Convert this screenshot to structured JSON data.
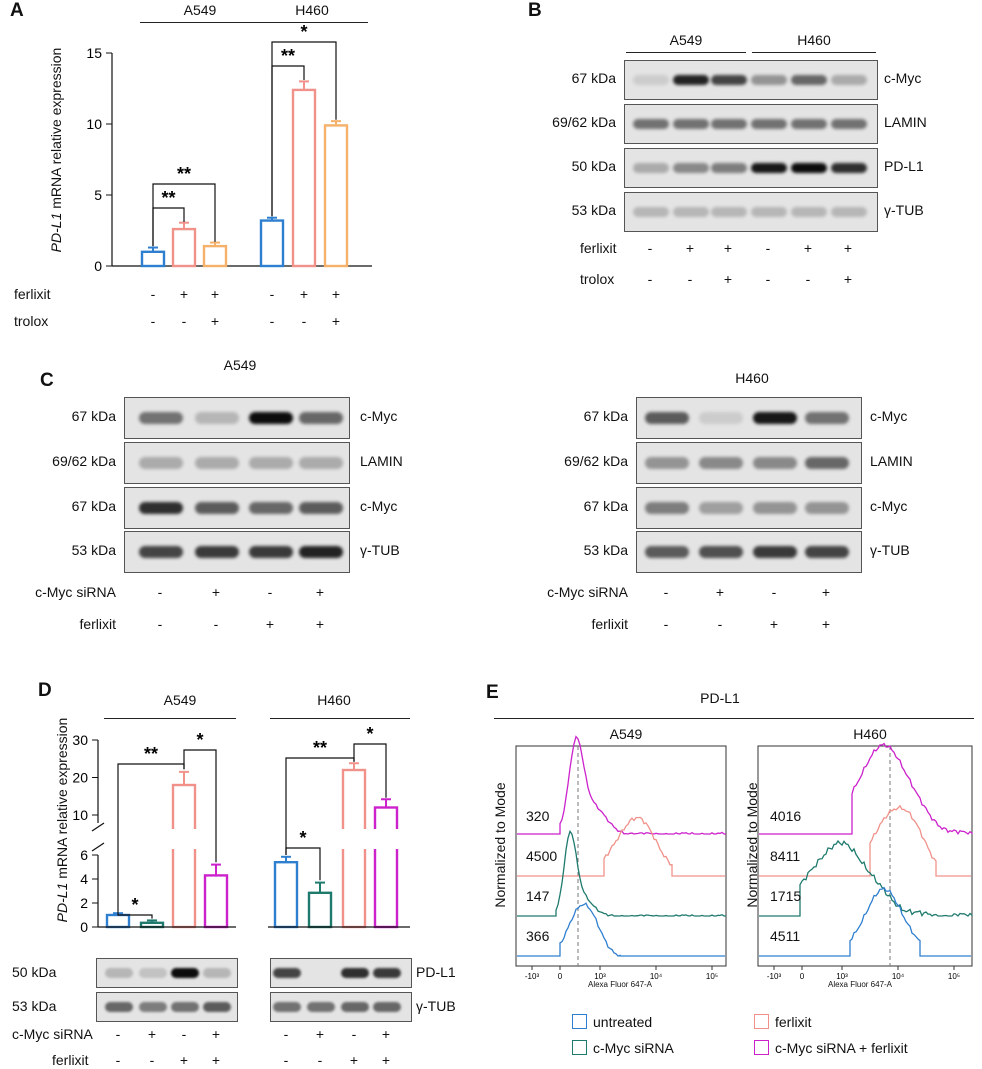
{
  "panels": {
    "A": "A",
    "B": "B",
    "C": "C",
    "D": "D",
    "E": "E"
  },
  "panel_a": {
    "cells": [
      "A549",
      "H460"
    ],
    "ylabel_gene": "PD-L1",
    "ylabel_rest": " mRNA relative expression",
    "treat": {
      "ferlixit": "ferlixit",
      "trolox": "trolox",
      "ferlixit_signs": [
        "-",
        "+",
        "+",
        "-",
        "+",
        "+"
      ],
      "trolox_signs": [
        "-",
        "-",
        "+",
        "-",
        "-",
        "+"
      ]
    },
    "sig": [
      "**",
      "**",
      "**",
      "*"
    ]
  },
  "panel_b": {
    "cells": [
      "A549",
      "H460"
    ],
    "rows": [
      {
        "kda": "67 kDa",
        "protein": "c-Myc"
      },
      {
        "kda": "69/62 kDa",
        "protein": "LAMIN"
      },
      {
        "kda": "50 kDa",
        "protein": "PD-L1"
      },
      {
        "kda": "53 kDa",
        "protein": "γ-TUB"
      }
    ],
    "ferlixit": "ferlixit",
    "trolox": "trolox",
    "ferlixit_signs": [
      "-",
      "+",
      "+",
      "-",
      "+",
      "+"
    ],
    "trolox_signs": [
      "-",
      "-",
      "+",
      "-",
      "-",
      "+"
    ]
  },
  "panel_c": {
    "left": {
      "cell": "A549",
      "rows": [
        {
          "kda": "67 kDa",
          "protein": "c-Myc"
        },
        {
          "kda": "69/62 kDa",
          "protein": "LAMIN"
        },
        {
          "kda": "67 kDa",
          "protein": "c-Myc"
        },
        {
          "kda": "53 kDa",
          "protein": "γ-TUB"
        }
      ],
      "sirna_label": "c-Myc siRNA",
      "ferlixit_label": "ferlixit",
      "sirna_signs": [
        "-",
        "+",
        "-",
        "+"
      ],
      "ferlixit_signs": [
        "-",
        "-",
        "+",
        "+"
      ]
    },
    "right": {
      "cell": "H460",
      "rows": [
        {
          "kda": "67 kDa",
          "protein": "c-Myc"
        },
        {
          "kda": "69/62 kDa",
          "protein": "LAMIN"
        },
        {
          "kda": "67 kDa",
          "protein": "c-Myc"
        },
        {
          "kda": "53 kDa",
          "protein": "γ-TUB"
        }
      ],
      "sirna_label": "c-Myc siRNA",
      "ferlixit_label": "ferlixit",
      "sirna_signs": [
        "-",
        "+",
        "-",
        "+"
      ],
      "ferlixit_signs": [
        "-",
        "-",
        "+",
        "+"
      ]
    }
  },
  "panel_d": {
    "cells": [
      "A549",
      "H460"
    ],
    "ylabel_gene": "PD-L1",
    "ylabel_rest": " mRNA relative expression",
    "blot_rows": [
      {
        "kda": "50 kDa",
        "protein": "PD-L1"
      },
      {
        "kda": "53 kDa",
        "protein": "γ-TUB"
      }
    ],
    "sirna_label": "c-Myc siRNA",
    "ferlixit_label": "ferlixit",
    "sirna_signs": [
      "-",
      "+",
      "-",
      "+",
      "-",
      "+",
      "-",
      "+"
    ],
    "ferlixit_signs": [
      "-",
      "-",
      "+",
      "+",
      "-",
      "-",
      "+",
      "+"
    ],
    "sig": [
      "*",
      "**",
      "*",
      "*",
      "**",
      "*"
    ]
  },
  "panel_e": {
    "title": "PD-L1",
    "cells": [
      "A549",
      "H460"
    ],
    "ylabel": "Normalized to Mode",
    "xlabel": "Alexa Fluor 647-A",
    "mfi_left": [
      "320",
      "4500",
      "147",
      "366"
    ],
    "mfi_right": [
      "4016",
      "8411",
      "1715",
      "4511"
    ],
    "legend": [
      {
        "label": "untreated",
        "color": "#2f7fd0"
      },
      {
        "label": "ferlixit",
        "color": "#f0928a"
      },
      {
        "label": "c-Myc siRNA",
        "color": "#1f7a6e"
      },
      {
        "label": "c-Myc siRNA + ferlixit",
        "color": "#cc22cc"
      }
    ]
  },
  "chart_data": [
    {
      "type": "bar",
      "id": "A",
      "title": "",
      "ylabel": "PD-L1 mRNA relative expression",
      "ylim": [
        0,
        15
      ],
      "yticks": [
        "0",
        "5",
        "10",
        "15"
      ],
      "categories": [
        "A549 ctrl",
        "A549 ferlixit",
        "A549 ferlixit+trolox",
        "H460 ctrl",
        "H460 ferlixit",
        "H460 ferlixit+trolox"
      ],
      "values": [
        1.0,
        2.6,
        1.4,
        3.2,
        12.4,
        9.9
      ],
      "errors": [
        0.3,
        0.45,
        0.25,
        0.2,
        0.6,
        0.3
      ],
      "colors": [
        "#2f7fd0",
        "#f0928a",
        "#f5b06a",
        "#2f7fd0",
        "#f0928a",
        "#f5b06a"
      ]
    },
    {
      "type": "bar",
      "id": "D",
      "title": "",
      "ylabel": "PD-L1 mRNA relative expression",
      "ylim": [
        0,
        30
      ],
      "axis_break": [
        6,
        10
      ],
      "yticks": [
        "0",
        "2",
        "4",
        "6",
        "10",
        "20",
        "30"
      ],
      "categories": [
        "A549 ctrl",
        "A549 siRNA",
        "A549 ferlixit",
        "A549 siRNA+ferlixit",
        "H460 ctrl",
        "H460 siRNA",
        "H460 ferlixit",
        "H460 siRNA+ferlixit"
      ],
      "values": [
        1.0,
        0.35,
        18.0,
        4.3,
        5.4,
        2.85,
        22.0,
        12.0
      ],
      "errors": [
        0.15,
        0.2,
        3.5,
        0.9,
        0.45,
        0.85,
        1.8,
        2.2
      ],
      "colors": [
        "#2f7fd0",
        "#1f7a6e",
        "#f0928a",
        "#cc22cc",
        "#2f7fd0",
        "#1f7a6e",
        "#f0928a",
        "#cc22cc"
      ]
    },
    {
      "type": "line",
      "id": "E",
      "title": "PD-L1",
      "xlabel": "Alexa Fluor 647-A",
      "ylabel": "Normalized to Mode",
      "xtick_labels": [
        "-10³",
        "0",
        "10³",
        "10⁴",
        "10⁵"
      ],
      "series": [
        {
          "name": "c-Myc siRNA + ferlixit",
          "color": "#cc22cc"
        },
        {
          "name": "ferlixit",
          "color": "#f0928a"
        },
        {
          "name": "c-Myc siRNA",
          "color": "#1f7a6e"
        },
        {
          "name": "untreated",
          "color": "#2f7fd0"
        }
      ]
    }
  ]
}
